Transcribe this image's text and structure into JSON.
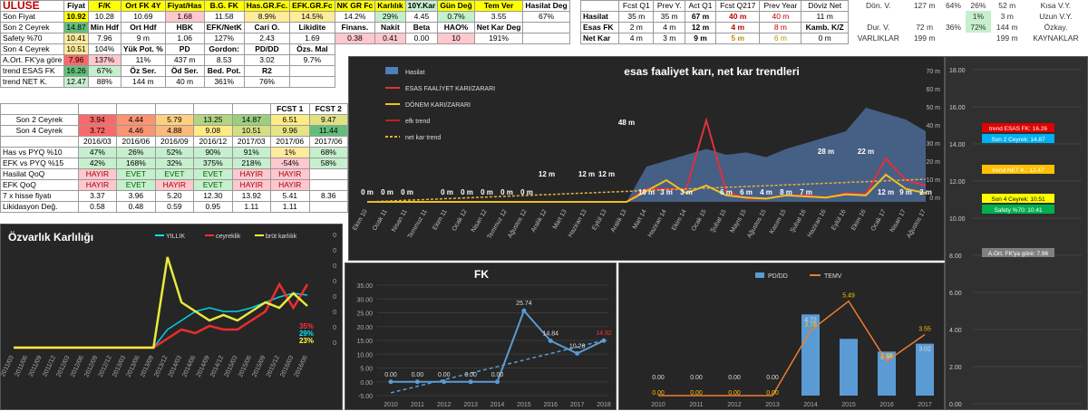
{
  "ticker": "ULUSE",
  "header": [
    "Fiyat",
    "F/K",
    "Ort FK 4Y",
    "Fiyat/Has",
    "B.G. FK",
    "Has.GR.Fc.",
    "EFK.GR.Fc",
    "NK GR Fc",
    "Karlılık",
    "10Y.Kar",
    "Gün Değ",
    "Tem Ver",
    "Hasilat Deg"
  ],
  "colors": {
    "accent": "#ffff00",
    "green": "#c6efce",
    "red": "#ffc7ce",
    "dark": "#262626"
  },
  "left_rows": [
    [
      {
        "v": "Son Fiyat",
        "c": "",
        "l": true
      },
      {
        "v": "10.92",
        "c": "#ffff00",
        "b": true
      },
      {
        "v": "10.28",
        "c": ""
      },
      {
        "v": "10.69",
        "c": ""
      },
      {
        "v": "1.68",
        "c": "#ffc7ce"
      },
      {
        "v": "11.58",
        "c": ""
      },
      {
        "v": "8.9%",
        "c": "#ffeb9c"
      },
      {
        "v": "14.5%",
        "c": "#ffeb9c"
      },
      {
        "v": "14.2%",
        "c": ""
      },
      {
        "v": "29%",
        "c": "#c6efce"
      },
      {
        "v": "4.45",
        "c": ""
      },
      {
        "v": "0.7%",
        "c": "#c6efce"
      },
      {
        "v": "3.55",
        "c": ""
      },
      {
        "v": "67%",
        "c": ""
      }
    ],
    [
      {
        "v": "Son 2 Ceyrek",
        "c": "",
        "l": true
      },
      {
        "v": "14.87",
        "c": "#63be7b"
      },
      {
        "v": "Min Hdf",
        "c": "",
        "b": true
      },
      {
        "v": "Ort Hdf",
        "c": "",
        "b": true
      },
      {
        "v": "HBK",
        "c": "",
        "b": true
      },
      {
        "v": "EFK/NetK",
        "c": "",
        "b": true
      },
      {
        "v": "Cari O.",
        "c": "",
        "b": true
      },
      {
        "v": "Likidite",
        "c": "",
        "b": true
      },
      {
        "v": "Finans.",
        "c": "",
        "b": true
      },
      {
        "v": "Nakit",
        "c": "",
        "b": true
      },
      {
        "v": "Beta",
        "c": "",
        "b": true
      },
      {
        "v": "HAO%",
        "c": "",
        "b": true
      },
      {
        "v": "Net Kar Deg",
        "c": "",
        "b": true
      },
      {
        "v": "",
        "c": ""
      }
    ],
    [
      {
        "v": "Safety %70",
        "c": "",
        "l": true
      },
      {
        "v": "10.41",
        "c": "#ffeb9c"
      },
      {
        "v": "7.96",
        "c": ""
      },
      {
        "v": "9 m",
        "c": ""
      },
      {
        "v": "1.06",
        "c": ""
      },
      {
        "v": "127%",
        "c": ""
      },
      {
        "v": "2.43",
        "c": ""
      },
      {
        "v": "1.69",
        "c": ""
      },
      {
        "v": "0.38",
        "c": "#ffc7ce"
      },
      {
        "v": "0.41",
        "c": "#ffc7ce"
      },
      {
        "v": "0.00",
        "c": ""
      },
      {
        "v": "10",
        "c": "#ffc7ce"
      },
      {
        "v": "191%",
        "c": ""
      },
      {
        "v": "",
        "c": ""
      }
    ],
    [
      {
        "v": "Son 4 Ceyrek",
        "c": "",
        "l": true
      },
      {
        "v": "10.51",
        "c": "#ffeb9c"
      },
      {
        "v": "104%",
        "c": ""
      },
      {
        "v": "Yük Pot. %",
        "c": "",
        "b": true
      },
      {
        "v": "PD",
        "c": "",
        "b": true
      },
      {
        "v": "Gordon:",
        "c": "",
        "b": true
      },
      {
        "v": "PD/DD",
        "c": "",
        "b": true
      },
      {
        "v": "Özs. Mal",
        "c": "",
        "b": true
      }
    ],
    [
      {
        "v": "A.Ort. FK'ya göre",
        "c": "",
        "l": true
      },
      {
        "v": "7.96",
        "c": "#f8696b"
      },
      {
        "v": "137%",
        "c": "#ffc7ce"
      },
      {
        "v": "11%",
        "c": ""
      },
      {
        "v": "437 m",
        "c": ""
      },
      {
        "v": "8.53",
        "c": ""
      },
      {
        "v": "3.02",
        "c": ""
      },
      {
        "v": "9.7%",
        "c": ""
      }
    ],
    [
      {
        "v": "trend ESAS FK",
        "c": "",
        "l": true
      },
      {
        "v": "16.26",
        "c": "#63be7b"
      },
      {
        "v": "67%",
        "c": "#c6efce"
      },
      {
        "v": "Öz Ser.",
        "c": "",
        "b": true
      },
      {
        "v": "Öd Ser.",
        "c": "",
        "b": true
      },
      {
        "v": "Bed. Pot.",
        "c": "",
        "b": true
      },
      {
        "v": "R2",
        "c": "",
        "b": true
      },
      {
        "v": "",
        "c": ""
      }
    ],
    [
      {
        "v": "trend NET K.",
        "c": "",
        "l": true
      },
      {
        "v": "12.47",
        "c": "#c6efce"
      },
      {
        "v": "88%",
        "c": ""
      },
      {
        "v": "144 m",
        "c": ""
      },
      {
        "v": "40 m",
        "c": ""
      },
      {
        "v": "361%",
        "c": ""
      },
      {
        "v": "76%",
        "c": ""
      },
      {
        "v": "",
        "c": ""
      }
    ]
  ],
  "fcst_headers": [
    "FCST 1",
    "FCST 2"
  ],
  "quarter_rows": [
    [
      {
        "v": "Son 2 Ceyrek",
        "c": ""
      },
      {
        "v": "3.94",
        "c": "#f8696b"
      },
      {
        "v": "4.44",
        "c": "#fa9473"
      },
      {
        "v": "5.79",
        "c": "#fdd17f"
      },
      {
        "v": "13.25",
        "c": "#b1d580"
      },
      {
        "v": "14.87",
        "c": "#9bcf7e"
      },
      {
        "v": "6.51",
        "c": "#ffeb84"
      },
      {
        "v": "9.47",
        "c": "#dfe283"
      }
    ],
    [
      {
        "v": "Son 4 Ceyrek",
        "c": ""
      },
      {
        "v": "3.72",
        "c": "#f8696b"
      },
      {
        "v": "4.46",
        "c": "#fa9473"
      },
      {
        "v": "4.88",
        "c": "#fcb97a"
      },
      {
        "v": "9.08",
        "c": "#ffeb84"
      },
      {
        "v": "10.51",
        "c": "#d5df82"
      },
      {
        "v": "9.96",
        "c": "#e6e483"
      },
      {
        "v": "11.44",
        "c": "#63be7b"
      }
    ]
  ],
  "periods": [
    "2016/03",
    "2016/06",
    "2016/09",
    "2016/12",
    "2017/03",
    "2017/06",
    "2017/06"
  ],
  "bottom_rows": [
    [
      {
        "v": "Has vs PYQ %10",
        "c": ""
      },
      {
        "v": "47%",
        "c": "#c6efce"
      },
      {
        "v": "26%",
        "c": "#c6efce"
      },
      {
        "v": "52%",
        "c": "#c6efce"
      },
      {
        "v": "90%",
        "c": "#c6efce"
      },
      {
        "v": "91%",
        "c": "#c6efce"
      },
      {
        "v": "1%",
        "c": "#ffeb9c"
      },
      {
        "v": "68%",
        "c": "#c6efce"
      }
    ],
    [
      {
        "v": "EFK vs PYQ %15",
        "c": ""
      },
      {
        "v": "42%",
        "c": "#c6efce"
      },
      {
        "v": "168%",
        "c": "#c6efce"
      },
      {
        "v": "32%",
        "c": "#c6efce"
      },
      {
        "v": "375%",
        "c": "#c6efce"
      },
      {
        "v": "218%",
        "c": "#c6efce"
      },
      {
        "v": "-54%",
        "c": "#ffc7ce"
      },
      {
        "v": "58%",
        "c": "#c6efce"
      }
    ],
    [
      {
        "v": "Hasilat QoQ",
        "c": ""
      },
      {
        "v": "HAYIR",
        "c": "#ffc7ce"
      },
      {
        "v": "EVET",
        "c": "#c6efce"
      },
      {
        "v": "EVET",
        "c": "#c6efce"
      },
      {
        "v": "EVET",
        "c": "#c6efce"
      },
      {
        "v": "HAYIR",
        "c": "#ffc7ce"
      },
      {
        "v": "HAYIR",
        "c": "#ffc7ce"
      },
      {
        "v": "",
        "c": ""
      }
    ],
    [
      {
        "v": "EFK QoQ",
        "c": ""
      },
      {
        "v": "HAYIR",
        "c": "#ffc7ce"
      },
      {
        "v": "EVET",
        "c": "#c6efce"
      },
      {
        "v": "HAYIR",
        "c": "#ffc7ce"
      },
      {
        "v": "EVET",
        "c": "#c6efce"
      },
      {
        "v": "HAYIR",
        "c": "#ffc7ce"
      },
      {
        "v": "HAYIR",
        "c": "#ffc7ce"
      },
      {
        "v": "",
        "c": ""
      }
    ],
    [
      {
        "v": "7 x hisse fiyatı",
        "c": ""
      },
      {
        "v": "3.37",
        "c": ""
      },
      {
        "v": "3.96",
        "c": ""
      },
      {
        "v": "5.20",
        "c": ""
      },
      {
        "v": "12.30",
        "c": ""
      },
      {
        "v": "13.92",
        "c": ""
      },
      {
        "v": "5.41",
        "c": ""
      },
      {
        "v": "8.36",
        "c": ""
      }
    ],
    [
      {
        "v": "Likidasyon Değ.",
        "c": ""
      },
      {
        "v": "0.58",
        "c": ""
      },
      {
        "v": "0.48",
        "c": ""
      },
      {
        "v": "0.59",
        "c": ""
      },
      {
        "v": "0.95",
        "c": ""
      },
      {
        "v": "1.11",
        "c": ""
      },
      {
        "v": "1.11",
        "c": ""
      },
      {
        "v": ""
      }
    ]
  ],
  "q_headers": [
    "Fcst Q1",
    "Prev Y.",
    "Act Q1",
    "Fcst Q217",
    "Prev Year",
    "Döviz Net"
  ],
  "q_rows": [
    [
      {
        "v": "Hasilat",
        "c": ""
      },
      {
        "v": "35 m"
      },
      {
        "v": "35 m"
      },
      {
        "v": "67 m",
        "b": true
      },
      {
        "v": "40 m",
        "col": "#c00000",
        "b": true
      },
      {
        "v": "40 m",
        "col": "#c00000"
      },
      {
        "v": "11 m"
      }
    ],
    [
      {
        "v": "Esas FK",
        "c": ""
      },
      {
        "v": "2 m"
      },
      {
        "v": "4 m"
      },
      {
        "v": "12 m",
        "b": true
      },
      {
        "v": "4 m",
        "col": "#c00000",
        "b": true
      },
      {
        "v": "8 m",
        "col": "#c00000"
      },
      {
        "v": "Kamb. K/Z",
        "b": true
      }
    ],
    [
      {
        "v": "Net Kar",
        "c": ""
      },
      {
        "v": "4 m"
      },
      {
        "v": "3 m"
      },
      {
        "v": "9 m",
        "b": true
      },
      {
        "v": "5 m",
        "col": "#c09000",
        "b": true
      },
      {
        "v": "6 m",
        "col": "#c09000"
      },
      {
        "v": "0 m"
      }
    ]
  ],
  "right_stats": [
    [
      "Dön. V.",
      "127 m",
      "64%",
      "26%",
      "52 m",
      "Kısa V.Y."
    ],
    [
      "",
      "",
      "",
      "1%",
      "3 m",
      "Uzun V.Y."
    ],
    [
      "Dur. V.",
      "72 m",
      "36%",
      "72%",
      "144 m",
      "Özkay."
    ],
    [
      "VARLIKLAR",
      "199 m",
      "",
      "",
      "199 m",
      "KAYNAKLAR"
    ]
  ],
  "trend_chart": {
    "type": "area",
    "title": "esas faaliyet karı, net kar trendleri",
    "legend": [
      "Hasilat",
      "ESAS FAALİYET KARI/ZARARI",
      "DÖNEM KARI/ZARARI",
      "efk trend",
      "net kar trend"
    ],
    "x": [
      "Ekim 10",
      "Ocak 11",
      "Nisan 11",
      "Temmuz 11",
      "Ekim 11",
      "Ocak 12",
      "Nisan 12",
      "Temmuz 12",
      "Ağustos 12",
      "Aralık 12",
      "Mart 13",
      "Haziran 13",
      "Eylül 13",
      "Aralık 13",
      "Mart 14",
      "Haziran 14",
      "Ekim 14",
      "Ocak 15",
      "Şubat 15",
      "Mayıs 15",
      "Ağustos 15",
      "Kasım 15",
      "Şubat 16",
      "Haziran 16",
      "Eylül 16",
      "Ekim 16",
      "Ocak 17",
      "Nisan 17",
      "Ağustos 17"
    ],
    "labels": [
      "0 m",
      "0 m",
      "0 m",
      "0 m",
      "0 m",
      "0 m",
      "0 m",
      "0 m",
      "12 m",
      "12 m",
      "12 m",
      "48 m",
      "10 m",
      "3 m",
      "3 m",
      "6 m",
      "6 m",
      "4 m",
      "8 m",
      "7 m",
      "28 m",
      "22 m",
      "12 m",
      "9 m",
      "2 m"
    ]
  },
  "side_scale": {
    "ticks": [
      "18.00",
      "16.00",
      "14.00",
      "12.00",
      "10.00",
      "8.00",
      "6.00",
      "4.00",
      "2.00",
      "0.00"
    ],
    "markers": [
      "trend ESAS FK: 16.26",
      "Son 2 Ceyrek: 14.87",
      "trend NET K.: 12.47",
      "Son 4 Ceyrek: 10.51",
      "Safety %70: 10.41",
      "A.Ort. FK'ya göre: 7.96"
    ]
  },
  "chart_data": [
    {
      "type": "line",
      "title": "Özvarlık Karlılığı",
      "legend": [
        "YILLIK",
        "ceyreklik",
        "brüt karlılık"
      ],
      "x": [
        "2011/03",
        "2011/06",
        "2011/09",
        "2011/12",
        "2012/03",
        "2012/06",
        "2012/09",
        "2012/12",
        "2013/03",
        "2013/06",
        "2013/09",
        "2013/12",
        "2014/03",
        "2014/06",
        "2014/09",
        "2014/12",
        "2015/03",
        "2015/06",
        "2015/09",
        "2015/12",
        "2016/03",
        "2016/06"
      ],
      "annotations": [
        "35%",
        "29%",
        "23%"
      ],
      "series": [
        {
          "name": "YILLIK",
          "values": [
            0,
            0,
            0,
            0,
            0,
            0,
            0,
            0,
            0,
            0,
            0,
            0.1,
            0.15,
            0.2,
            0.22,
            0.2,
            0.2,
            0.22,
            0.25,
            0.28,
            0.3,
            0.29
          ]
        },
        {
          "name": "ceyreklik",
          "values": [
            0,
            0,
            0,
            0,
            0,
            0,
            0,
            0,
            0,
            0,
            0,
            0.05,
            0.1,
            0.08,
            0.12,
            0.1,
            0.1,
            0.15,
            0.2,
            0.35,
            0.22,
            0.35
          ]
        },
        {
          "name": "brüt karlılık",
          "values": [
            0,
            0,
            0,
            0,
            0,
            0,
            0,
            0,
            0,
            0,
            0,
            0.5,
            0.25,
            0.2,
            0.15,
            0.18,
            0.15,
            0.2,
            0.25,
            0.22,
            0.3,
            0.23
          ]
        }
      ],
      "ylim": [
        0,
        0.6
      ]
    },
    {
      "type": "line",
      "title": "FK",
      "x": [
        "2010",
        "2011",
        "2012",
        "2013",
        "2014",
        "2015",
        "2016",
        "2017",
        "2018"
      ],
      "values": [
        0,
        0,
        0,
        0,
        0,
        25.74,
        14.84,
        10.28,
        14.92
      ],
      "ylim": [
        -5,
        35
      ],
      "yticks": [
        "35.00",
        "30.00",
        "25.00",
        "20.00",
        "15.00",
        "10.00",
        "5.00",
        "0.00",
        "-5.00"
      ],
      "labels": [
        "0.00",
        "0.00",
        "0.00",
        "0.00",
        "0.00",
        "25.74",
        "14.84",
        "10.28",
        "14.92"
      ]
    },
    {
      "type": "bar",
      "title": "",
      "legend": [
        "PD/DD",
        "TEMV"
      ],
      "categories": [
        "2010",
        "2011",
        "2012",
        "2013",
        "2014",
        "2015",
        "2016",
        "2017"
      ],
      "series": [
        {
          "name": "PD/DD",
          "values": [
            0,
            0,
            0,
            0,
            4.72,
            3.3,
            2.56,
            3.02
          ]
        },
        {
          "name": "TEMV",
          "values": [
            0,
            0,
            0,
            0,
            3.78,
            5.49,
            2.0,
            3.55
          ]
        }
      ],
      "labels_pd": [
        "0.00",
        "0.00",
        "0.00",
        "0.00",
        "4.72",
        "",
        "2.56",
        "3.02"
      ],
      "labels_temv": [
        "0.00",
        "0.00",
        "0.00",
        "0.00",
        "3.78",
        "5.49",
        "2.00",
        "3.55"
      ]
    }
  ]
}
